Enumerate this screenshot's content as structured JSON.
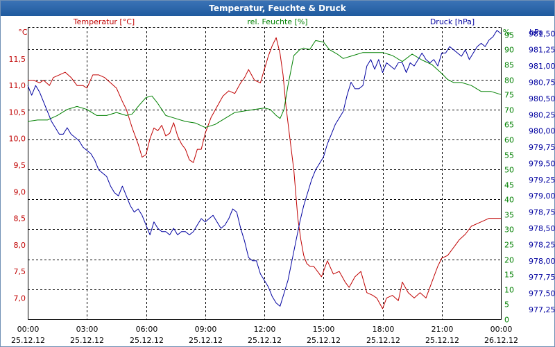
{
  "window": {
    "title": "Temperatur, Feuchte & Druck"
  },
  "colors": {
    "temperature": "#c00000",
    "humidity": "#008000",
    "pressure": "#0000a0",
    "title_bar": "#2a65a8"
  },
  "chart_data": {
    "type": "line",
    "title": "Temperatur, Feuchte & Druck",
    "grid": true,
    "x_ticks": [
      {
        "time": "00:00",
        "date": "25.12.12"
      },
      {
        "time": "03:00",
        "date": "25.12.12"
      },
      {
        "time": "06:00",
        "date": "25.12.12"
      },
      {
        "time": "09:00",
        "date": "25.12.12"
      },
      {
        "time": "12:00",
        "date": "25.12.12"
      },
      {
        "time": "15:00",
        "date": "25.12.12"
      },
      {
        "time": "18:00",
        "date": "25.12.12"
      },
      {
        "time": "21:00",
        "date": "25.12.12"
      },
      {
        "time": "00:00",
        "date": "26.12.12"
      }
    ],
    "x_range_hours": [
      0,
      24
    ],
    "axes": {
      "temperature": {
        "label": "Temperatur [°C]",
        "unit": "°C",
        "range": [
          6.6,
          12.1
        ],
        "ticks": [
          "7,0",
          "7,5",
          "8,0",
          "8,5",
          "9,0",
          "9,5",
          "10,0",
          "10,5",
          "11,0",
          "11,5"
        ]
      },
      "humidity": {
        "label": "rel. Feuchte [%]",
        "unit": "%",
        "range": [
          0,
          97.5
        ],
        "ticks": [
          "0",
          "5",
          "10",
          "15",
          "20",
          "25",
          "30",
          "35",
          "40",
          "45",
          "50",
          "55",
          "60",
          "65",
          "70",
          "75",
          "80",
          "85",
          "90",
          "95"
        ]
      },
      "pressure": {
        "label": "Druck [hPa]",
        "unit": "hPa",
        "range": [
          977.1,
          981.6
        ],
        "ticks": [
          "977,25",
          "977,50",
          "977,75",
          "978,00",
          "978,25",
          "978,50",
          "978,75",
          "979,00",
          "979,25",
          "979,50",
          "979,75",
          "980,00",
          "980,25",
          "980,50",
          "980,75",
          "981,00",
          "981,25",
          "981,50"
        ]
      }
    },
    "series": [
      {
        "name": "Temperatur [°C]",
        "axis": "temperature",
        "x": [
          0,
          0.3,
          0.6,
          0.8,
          1.1,
          1.3,
          1.6,
          1.9,
          2.2,
          2.5,
          2.8,
          3.0,
          3.3,
          3.6,
          3.9,
          4.2,
          4.5,
          4.8,
          5.0,
          5.3,
          5.6,
          5.8,
          6.0,
          6.2,
          6.4,
          6.6,
          6.8,
          7.0,
          7.2,
          7.4,
          7.6,
          7.8,
          8.0,
          8.2,
          8.4,
          8.6,
          8.8,
          9.0,
          9.3,
          9.6,
          9.9,
          10.2,
          10.5,
          10.8,
          11.0,
          11.2,
          11.5,
          11.8,
          12.0,
          12.2,
          12.4,
          12.6,
          12.8,
          12.95,
          13.1,
          13.3,
          13.5,
          13.7,
          13.85,
          14.0,
          14.15,
          14.3,
          14.5,
          14.7,
          14.9,
          15.2,
          15.5,
          15.8,
          16.1,
          16.3,
          16.6,
          16.9,
          17.2,
          17.5,
          17.7,
          18.0,
          18.2,
          18.5,
          18.8,
          19.0,
          19.3,
          19.6,
          19.9,
          20.2,
          20.5,
          20.8,
          21.0,
          21.3,
          21.6,
          21.9,
          22.2,
          22.5,
          22.8,
          23.1,
          23.4,
          23.7,
          24.0
        ],
        "y": [
          11.1,
          11.1,
          11.05,
          11.1,
          11.0,
          11.15,
          11.2,
          11.25,
          11.15,
          11.0,
          11.0,
          10.95,
          11.2,
          11.2,
          11.15,
          11.05,
          10.95,
          10.7,
          10.55,
          10.2,
          9.9,
          9.65,
          9.7,
          10.0,
          10.2,
          10.15,
          10.25,
          10.05,
          10.1,
          10.3,
          10.05,
          9.9,
          9.8,
          9.6,
          9.55,
          9.8,
          9.8,
          10.1,
          10.4,
          10.6,
          10.8,
          10.9,
          10.85,
          11.05,
          11.15,
          11.3,
          11.1,
          11.05,
          11.3,
          11.55,
          11.75,
          11.9,
          11.6,
          11.2,
          10.6,
          10.0,
          9.4,
          8.5,
          8.1,
          7.8,
          7.65,
          7.6,
          7.6,
          7.5,
          7.4,
          7.7,
          7.45,
          7.5,
          7.3,
          7.2,
          7.4,
          7.5,
          7.1,
          7.05,
          7.0,
          6.8,
          7.0,
          7.05,
          6.95,
          7.3,
          7.1,
          7.0,
          7.1,
          7.0,
          7.3,
          7.6,
          7.75,
          7.8,
          7.95,
          8.1,
          8.2,
          8.35,
          8.4,
          8.45,
          8.5,
          8.5,
          8.5
        ]
      },
      {
        "name": "rel. Feuchte [%]",
        "axis": "humidity",
        "x": [
          0,
          0.5,
          1.0,
          1.5,
          2.0,
          2.5,
          3.0,
          3.5,
          4.0,
          4.5,
          5.0,
          5.3,
          5.6,
          6.0,
          6.3,
          6.6,
          7.0,
          7.5,
          8.0,
          8.5,
          9.0,
          9.5,
          10.0,
          10.5,
          11.0,
          11.5,
          12.0,
          12.3,
          12.6,
          12.8,
          13.0,
          13.2,
          13.5,
          13.8,
          14.0,
          14.3,
          14.6,
          15.0,
          15.3,
          15.7,
          16.0,
          16.5,
          17.0,
          17.5,
          18.0,
          18.5,
          19.0,
          19.5,
          20.0,
          20.5,
          21.0,
          21.3,
          21.6,
          22.0,
          22.5,
          23.0,
          23.5,
          24.0
        ],
        "y": [
          66,
          66.5,
          66.5,
          68,
          70,
          71,
          70,
          68,
          68,
          69,
          68,
          68.5,
          71,
          74,
          74.5,
          72,
          68,
          67,
          66,
          65.5,
          64,
          65,
          67,
          69,
          69.5,
          70,
          70.5,
          70,
          68,
          67,
          70,
          78,
          88,
          90,
          90.5,
          90,
          93,
          92.5,
          90,
          88.5,
          87,
          88,
          89,
          89,
          89,
          88,
          86,
          88.5,
          86.5,
          85,
          82,
          80,
          79,
          79,
          78,
          76,
          76,
          75
        ]
      },
      {
        "name": "Druck [hPa]",
        "axis": "pressure",
        "x": [
          0,
          0.2,
          0.4,
          0.6,
          0.8,
          1.0,
          1.2,
          1.4,
          1.6,
          1.8,
          2.0,
          2.2,
          2.4,
          2.6,
          2.8,
          3.0,
          3.2,
          3.4,
          3.6,
          3.8,
          4.0,
          4.2,
          4.4,
          4.6,
          4.8,
          5.0,
          5.2,
          5.4,
          5.6,
          5.8,
          6.0,
          6.2,
          6.4,
          6.6,
          6.8,
          7.0,
          7.2,
          7.4,
          7.6,
          7.8,
          8.0,
          8.2,
          8.4,
          8.6,
          8.8,
          9.0,
          9.2,
          9.4,
          9.6,
          9.8,
          10.0,
          10.2,
          10.4,
          10.6,
          10.8,
          11.0,
          11.2,
          11.4,
          11.6,
          11.8,
          12.0,
          12.2,
          12.4,
          12.6,
          12.8,
          13.0,
          13.2,
          13.4,
          13.6,
          13.8,
          14.0,
          14.2,
          14.4,
          14.6,
          14.8,
          15.0,
          15.2,
          15.4,
          15.6,
          15.8,
          16.0,
          16.2,
          16.4,
          16.6,
          16.8,
          17.0,
          17.2,
          17.4,
          17.6,
          17.8,
          18.0,
          18.2,
          18.4,
          18.6,
          18.8,
          19.0,
          19.2,
          19.4,
          19.6,
          19.8,
          20.0,
          20.2,
          20.4,
          20.6,
          20.8,
          21.0,
          21.2,
          21.4,
          21.6,
          21.8,
          22.0,
          22.2,
          22.4,
          22.6,
          22.8,
          23.0,
          23.2,
          23.4,
          23.6,
          23.8,
          24.0
        ],
        "y": [
          980.7,
          980.55,
          980.7,
          980.6,
          980.45,
          980.3,
          980.15,
          980.05,
          979.95,
          979.95,
          980.05,
          979.95,
          979.9,
          979.85,
          979.75,
          979.7,
          979.65,
          979.55,
          979.4,
          979.35,
          979.3,
          979.15,
          979.05,
          979.0,
          979.15,
          979.0,
          978.85,
          978.75,
          978.8,
          978.7,
          978.55,
          978.4,
          978.6,
          978.5,
          978.45,
          978.45,
          978.4,
          978.5,
          978.4,
          978.45,
          978.45,
          978.4,
          978.45,
          978.55,
          978.65,
          978.6,
          978.65,
          978.7,
          978.6,
          978.5,
          978.55,
          978.65,
          978.8,
          978.75,
          978.5,
          978.3,
          978.05,
          978.0,
          978.0,
          977.8,
          977.7,
          977.6,
          977.45,
          977.35,
          977.3,
          977.5,
          977.7,
          978.0,
          978.3,
          978.6,
          978.85,
          979.05,
          979.25,
          979.4,
          979.5,
          979.6,
          979.8,
          979.95,
          980.1,
          980.2,
          980.3,
          980.55,
          980.75,
          980.65,
          980.65,
          980.7,
          981.0,
          981.1,
          980.95,
          981.1,
          980.9,
          981.05,
          981.0,
          980.95,
          981.05,
          981.05,
          980.9,
          981.05,
          981.0,
          981.1,
          981.2,
          981.1,
          981.05,
          981.1,
          981.0,
          981.2,
          981.2,
          981.3,
          981.25,
          981.2,
          981.15,
          981.25,
          981.1,
          981.2,
          981.3,
          981.35,
          981.3,
          981.4,
          981.45,
          981.55,
          981.5
        ]
      }
    ]
  }
}
